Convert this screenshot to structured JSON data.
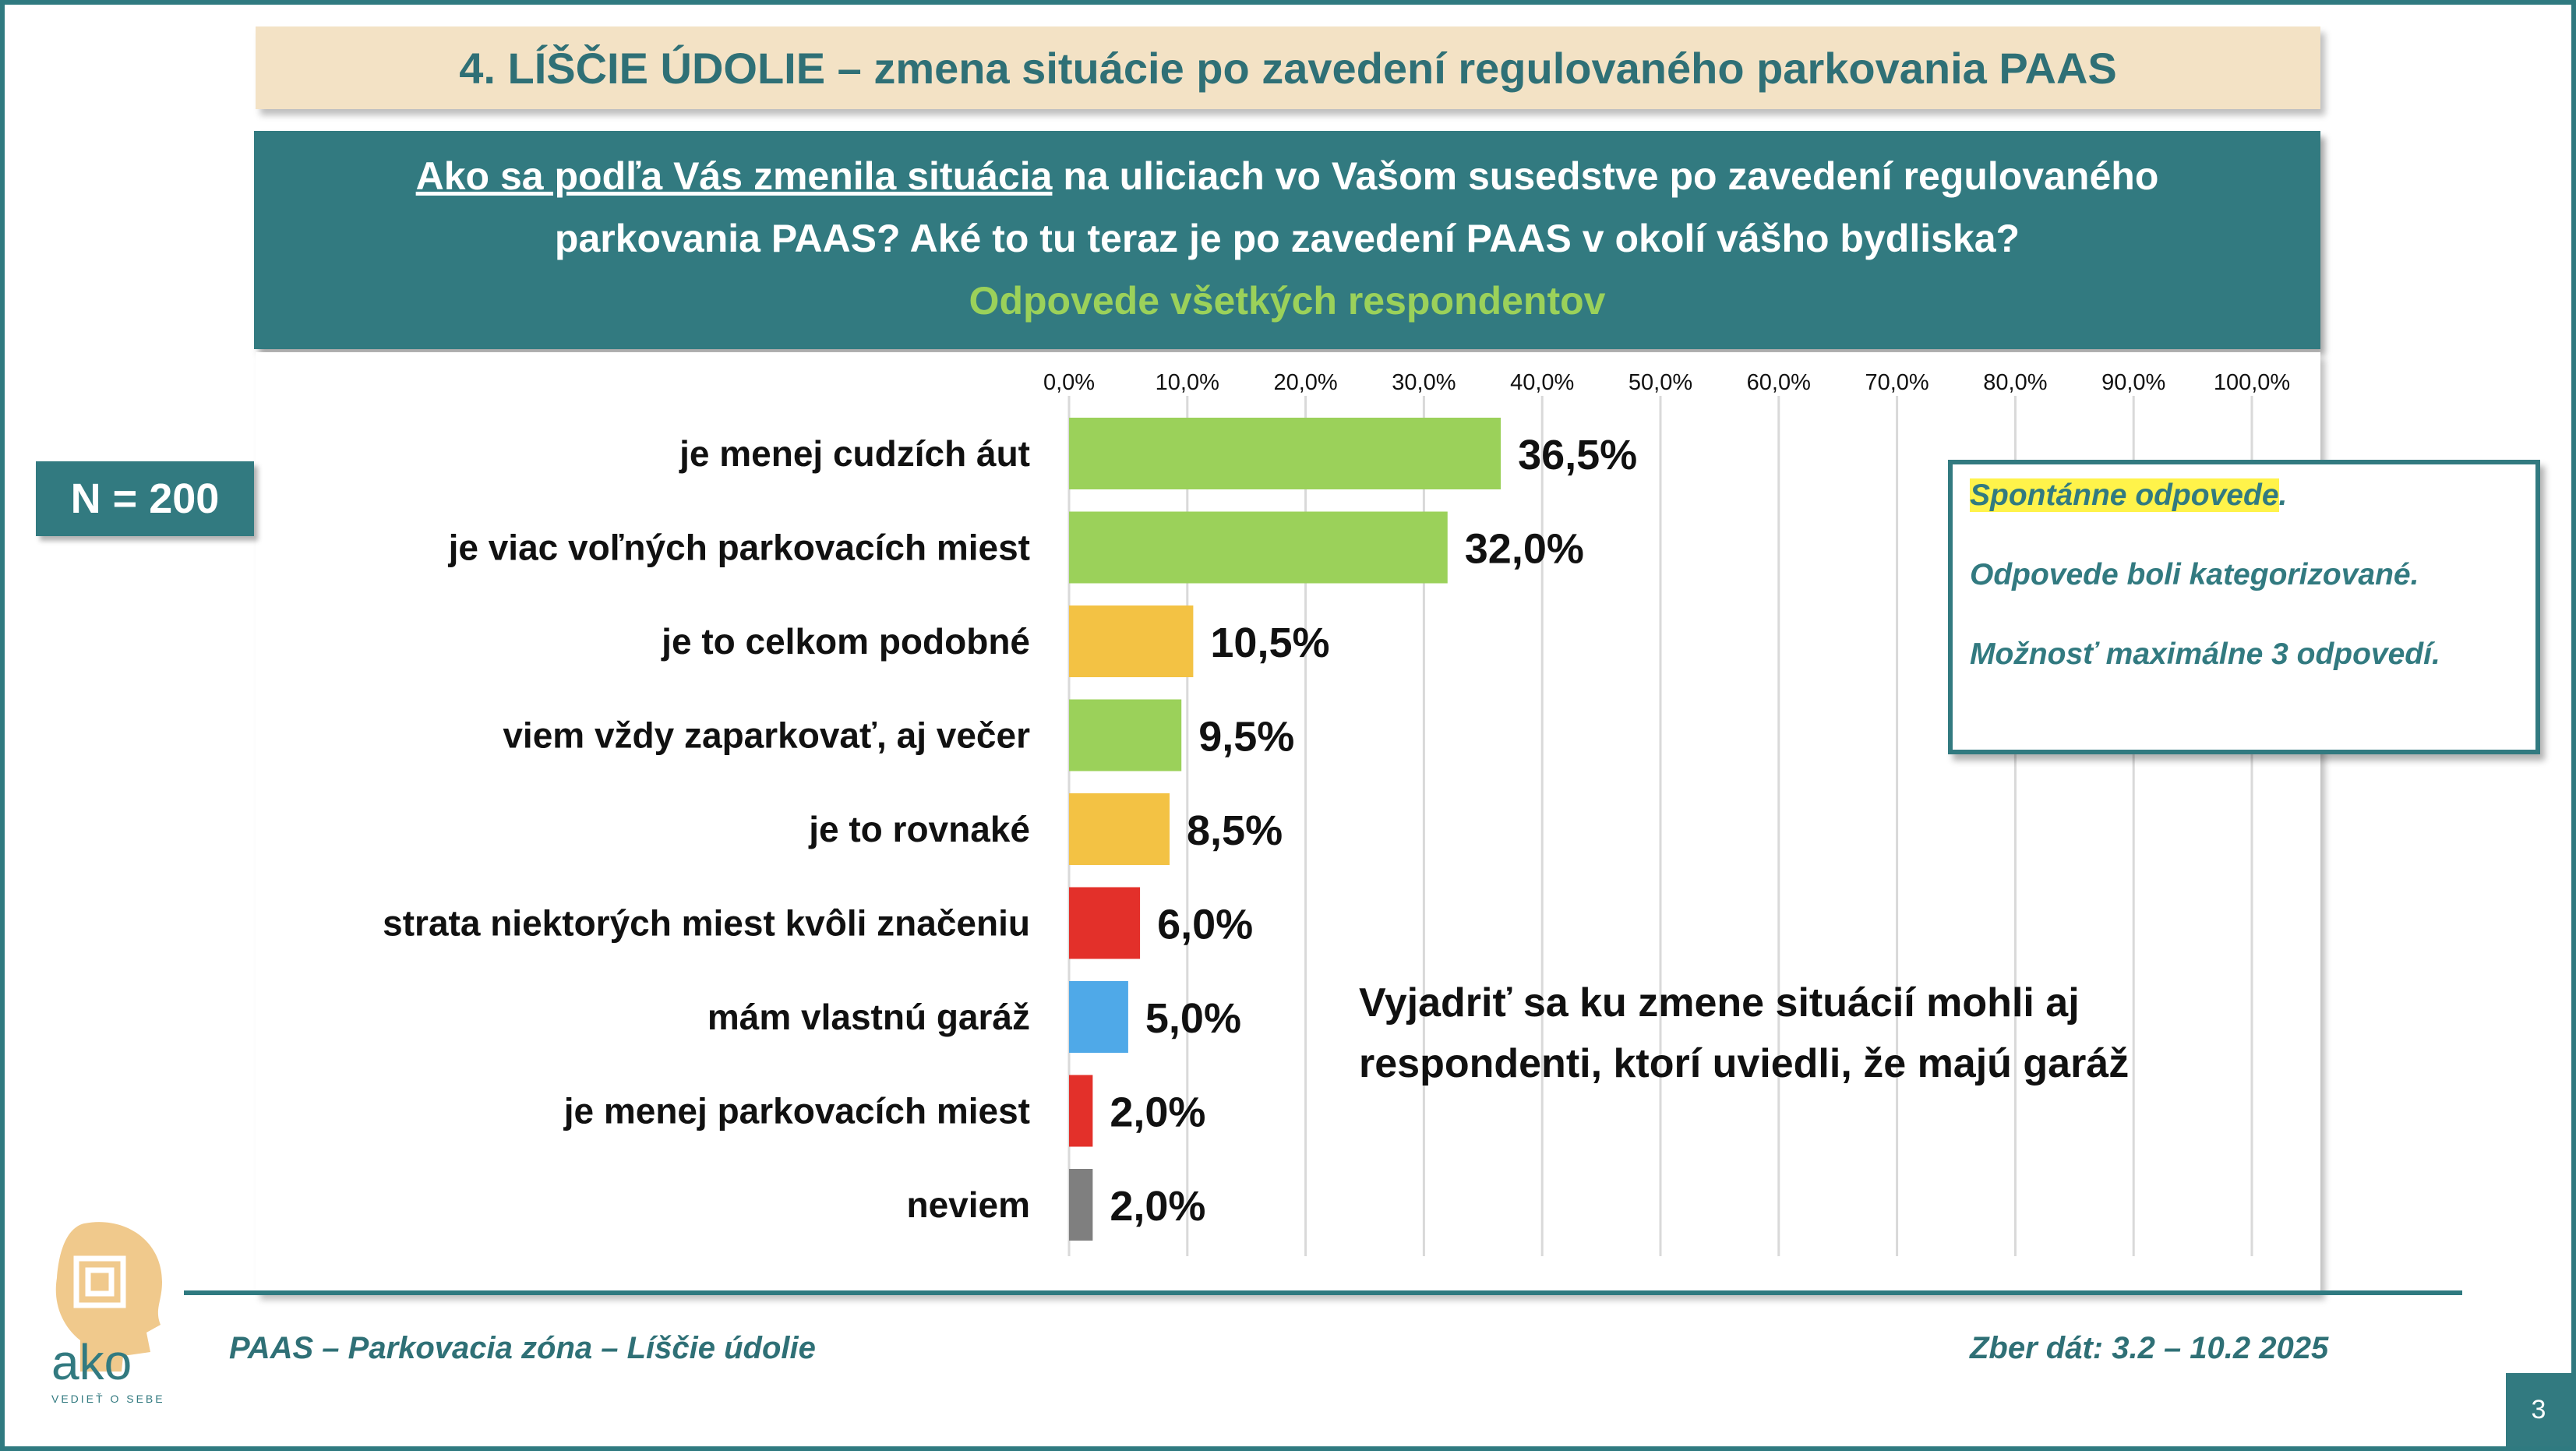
{
  "title": "4. LÍŠČIE ÚDOLIE – zmena situácie po zavedení  regulovaného parkovania PAAS",
  "question": {
    "underlined": "Ako sa podľa Vás zmenila situácia",
    "rest_line1": " na uliciach vo Vašom susedstve po zavedení regulovaného",
    "line2": "parkovania PAAS? Aké to tu teraz je po zavedení PAAS v okolí vášho bydliska?",
    "subtitle": "Odpovede všetkých respondentov"
  },
  "sample_size": "N = 200",
  "notes": {
    "line1": "Spontánne odpovede",
    "line1_suffix": ".",
    "line2": "Odpovede boli kategorizované.",
    "line3": "Možnosť maximálne 3 odpovedí."
  },
  "comment": {
    "line1": "Vyjadriť sa ku zmene situácií mohli aj",
    "line2": "respondenti, ktorí uviedli, že majú garáž"
  },
  "footer": {
    "left": "PAAS – Parkovacia zóna – Líščie údolie",
    "right": "Zber dát: 3.2 – 10.2 2025",
    "page": "3"
  },
  "logo": {
    "text": "ako",
    "tagline": "VEDIEŤ O SEBE"
  },
  "colors": {
    "teal": "#327a80",
    "green": "#9bd15a",
    "yellow": "#f3c244",
    "red": "#e3302a",
    "blue": "#4fa9e8",
    "gray": "#7f7f7f",
    "highlight": "#fff34a"
  },
  "chart_data": {
    "type": "bar",
    "orientation": "horizontal",
    "xlim": [
      0,
      100
    ],
    "tick_labels": [
      "0,0%",
      "10,0%",
      "20,0%",
      "30,0%",
      "40,0%",
      "50,0%",
      "60,0%",
      "70,0%",
      "80,0%",
      "90,0%",
      "100,0%"
    ],
    "grid": true,
    "categories": [
      "je menej cudzích áut",
      "je viac voľných parkovacích miest",
      "je to celkom podobné",
      "viem vždy zaparkovať, aj večer",
      "je to rovnaké",
      "strata niektorých miest kvôli značeniu",
      "mám vlastnú garáž",
      "je menej parkovacích miest",
      "neviem"
    ],
    "values": [
      36.5,
      32.0,
      10.5,
      9.5,
      8.5,
      6.0,
      5.0,
      2.0,
      2.0
    ],
    "value_labels": [
      "36,5%",
      "32,0%",
      "10,5%",
      "9,5%",
      "8,5%",
      "6,0%",
      "5,0%",
      "2,0%",
      "2,0%"
    ],
    "bar_colors": [
      "#9bd15a",
      "#9bd15a",
      "#f3c244",
      "#9bd15a",
      "#f3c244",
      "#e3302a",
      "#4fa9e8",
      "#e3302a",
      "#7f7f7f"
    ]
  }
}
